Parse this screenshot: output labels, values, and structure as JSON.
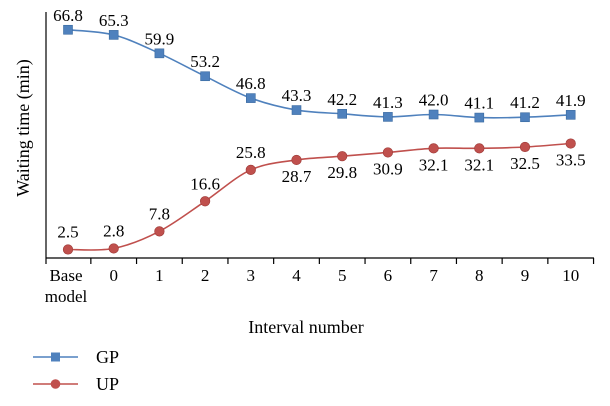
{
  "chart_data": {
    "type": "line",
    "categories": [
      "Base model",
      "0",
      "1",
      "2",
      "3",
      "4",
      "5",
      "6",
      "7",
      "8",
      "9",
      "10"
    ],
    "series": [
      {
        "name": "GP",
        "color": "#4f81bd",
        "marker": "square",
        "values": [
          66.8,
          65.3,
          59.9,
          53.2,
          46.8,
          43.3,
          42.2,
          41.3,
          42.0,
          41.1,
          41.2,
          41.9
        ],
        "labels": [
          "66.8",
          "65.3",
          "59.9",
          "53.2",
          "46.8",
          "43.3",
          "42.2",
          "41.3",
          "42.0",
          "41.1",
          "41.2",
          "41.9"
        ]
      },
      {
        "name": "UP",
        "color": "#c0504d",
        "marker": "circle",
        "values": [
          2.5,
          2.8,
          7.8,
          16.6,
          25.8,
          28.7,
          29.8,
          30.9,
          32.1,
          32.1,
          32.5,
          33.5
        ],
        "labels": [
          "2.5",
          "2.8",
          "7.8",
          "16.6",
          "25.8",
          "28.7",
          "29.8",
          "30.9",
          "32.1",
          "32.1",
          "32.5",
          "33.5"
        ]
      }
    ],
    "title": "",
    "xlabel": "Interval number",
    "ylabel": "Waiting time (min)",
    "ylim": [
      0,
      72
    ],
    "grid": false,
    "legend": "bottom-left"
  }
}
